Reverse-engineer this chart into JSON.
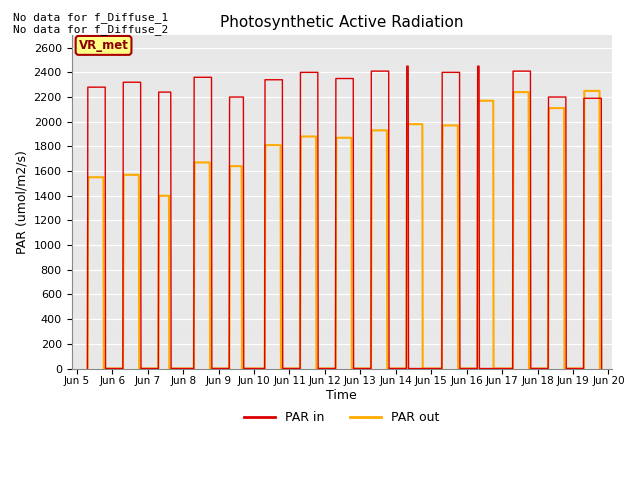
{
  "title": "Photosynthetic Active Radiation",
  "ylabel": "PAR (umol/m2/s)",
  "xlabel": "Time",
  "no_data_text_1": "No data for f_Diffuse_1",
  "no_data_text_2": "No data for f_Diffuse_2",
  "vr_met_label": "VR_met",
  "legend_labels": [
    "PAR in",
    "PAR out"
  ],
  "line_color_par_in": "#dd0000",
  "line_color_par_out": "#ffaa00",
  "background_color": "#e8e8e8",
  "ylim": [
    0,
    2700
  ],
  "yticks": [
    0,
    200,
    400,
    600,
    800,
    1000,
    1200,
    1400,
    1600,
    1800,
    2000,
    2200,
    2400,
    2600
  ],
  "xlim": [
    4.85,
    20.1
  ],
  "par_in_data": [
    [
      5.3,
      0
    ],
    [
      5.31,
      2280
    ],
    [
      5.8,
      2280
    ],
    [
      5.81,
      0
    ],
    [
      6.3,
      0
    ],
    [
      6.31,
      2320
    ],
    [
      6.8,
      2320
    ],
    [
      6.81,
      0
    ],
    [
      7.3,
      0
    ],
    [
      7.31,
      2240
    ],
    [
      7.65,
      2240
    ],
    [
      7.66,
      0
    ],
    [
      8.3,
      0
    ],
    [
      8.31,
      2360
    ],
    [
      8.8,
      2360
    ],
    [
      8.81,
      0
    ],
    [
      9.3,
      0
    ],
    [
      9.31,
      2200
    ],
    [
      9.7,
      2200
    ],
    [
      9.71,
      0
    ],
    [
      10.3,
      0
    ],
    [
      10.31,
      2340
    ],
    [
      10.8,
      2340
    ],
    [
      10.81,
      0
    ],
    [
      11.3,
      0
    ],
    [
      11.31,
      2400
    ],
    [
      11.8,
      2400
    ],
    [
      11.81,
      0
    ],
    [
      12.3,
      0
    ],
    [
      12.31,
      2350
    ],
    [
      12.8,
      2350
    ],
    [
      12.81,
      0
    ],
    [
      13.3,
      0
    ],
    [
      13.31,
      2410
    ],
    [
      13.8,
      2410
    ],
    [
      13.81,
      0
    ],
    [
      14.3,
      0
    ],
    [
      14.31,
      2450
    ],
    [
      14.35,
      2450
    ],
    [
      14.36,
      0
    ],
    [
      15.3,
      0
    ],
    [
      15.31,
      2400
    ],
    [
      15.8,
      2400
    ],
    [
      15.81,
      0
    ],
    [
      16.3,
      0
    ],
    [
      16.31,
      2450
    ],
    [
      16.35,
      2450
    ],
    [
      16.36,
      0
    ],
    [
      17.3,
      0
    ],
    [
      17.31,
      2410
    ],
    [
      17.8,
      2410
    ],
    [
      17.81,
      0
    ],
    [
      18.3,
      0
    ],
    [
      18.31,
      2200
    ],
    [
      18.8,
      2200
    ],
    [
      18.81,
      0
    ],
    [
      19.3,
      0
    ],
    [
      19.31,
      2190
    ],
    [
      19.8,
      2190
    ],
    [
      19.81,
      0
    ]
  ],
  "par_out_data": [
    [
      5.3,
      0
    ],
    [
      5.32,
      1550
    ],
    [
      5.75,
      1550
    ],
    [
      5.76,
      0
    ],
    [
      6.3,
      0
    ],
    [
      6.32,
      1570
    ],
    [
      6.75,
      1570
    ],
    [
      6.76,
      0
    ],
    [
      7.3,
      0
    ],
    [
      7.32,
      1400
    ],
    [
      7.6,
      1400
    ],
    [
      7.61,
      0
    ],
    [
      8.3,
      0
    ],
    [
      8.32,
      1670
    ],
    [
      8.75,
      1670
    ],
    [
      8.76,
      0
    ],
    [
      9.3,
      0
    ],
    [
      9.32,
      1640
    ],
    [
      9.65,
      1640
    ],
    [
      9.66,
      0
    ],
    [
      10.3,
      0
    ],
    [
      10.32,
      1810
    ],
    [
      10.75,
      1810
    ],
    [
      10.76,
      0
    ],
    [
      11.3,
      0
    ],
    [
      11.32,
      1880
    ],
    [
      11.75,
      1880
    ],
    [
      11.76,
      0
    ],
    [
      12.3,
      0
    ],
    [
      12.32,
      1870
    ],
    [
      12.75,
      1870
    ],
    [
      12.76,
      0
    ],
    [
      13.3,
      0
    ],
    [
      13.32,
      1930
    ],
    [
      13.75,
      1930
    ],
    [
      13.76,
      0
    ],
    [
      14.3,
      0
    ],
    [
      14.32,
      1980
    ],
    [
      14.75,
      1980
    ],
    [
      14.76,
      0
    ],
    [
      15.3,
      0
    ],
    [
      15.32,
      1970
    ],
    [
      15.75,
      1970
    ],
    [
      15.76,
      0
    ],
    [
      16.3,
      0
    ],
    [
      16.32,
      2170
    ],
    [
      16.75,
      2170
    ],
    [
      16.76,
      0
    ],
    [
      17.3,
      0
    ],
    [
      17.32,
      2240
    ],
    [
      17.75,
      2240
    ],
    [
      17.76,
      0
    ],
    [
      18.3,
      0
    ],
    [
      18.32,
      2110
    ],
    [
      18.75,
      2110
    ],
    [
      18.76,
      0
    ],
    [
      19.3,
      0
    ],
    [
      19.32,
      2250
    ],
    [
      19.75,
      2250
    ],
    [
      19.76,
      0
    ]
  ],
  "tick_positions": [
    5,
    6,
    7,
    8,
    9,
    10,
    11,
    12,
    13,
    14,
    15,
    16,
    17,
    18,
    19,
    20
  ],
  "tick_labels": [
    "Jun 5",
    "Jun 6",
    "Jun 7",
    "Jun 8",
    "Jun 9",
    "Jun 10",
    "Jun 11",
    "Jun 12",
    "Jun 13",
    "Jun 14",
    "Jun 15",
    "Jun 16",
    "Jun 17",
    "Jun 18",
    "Jun 19",
    "Jun 20"
  ]
}
